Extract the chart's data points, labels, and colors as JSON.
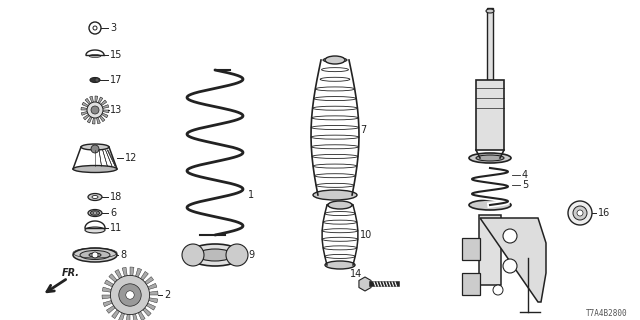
{
  "bg_color": "#ffffff",
  "diagram_code": "T7A4B2800",
  "line_color": "#222222",
  "text_color": "#222222",
  "label_fontsize": 7.0,
  "figsize": [
    6.4,
    3.2
  ],
  "dpi": 100
}
